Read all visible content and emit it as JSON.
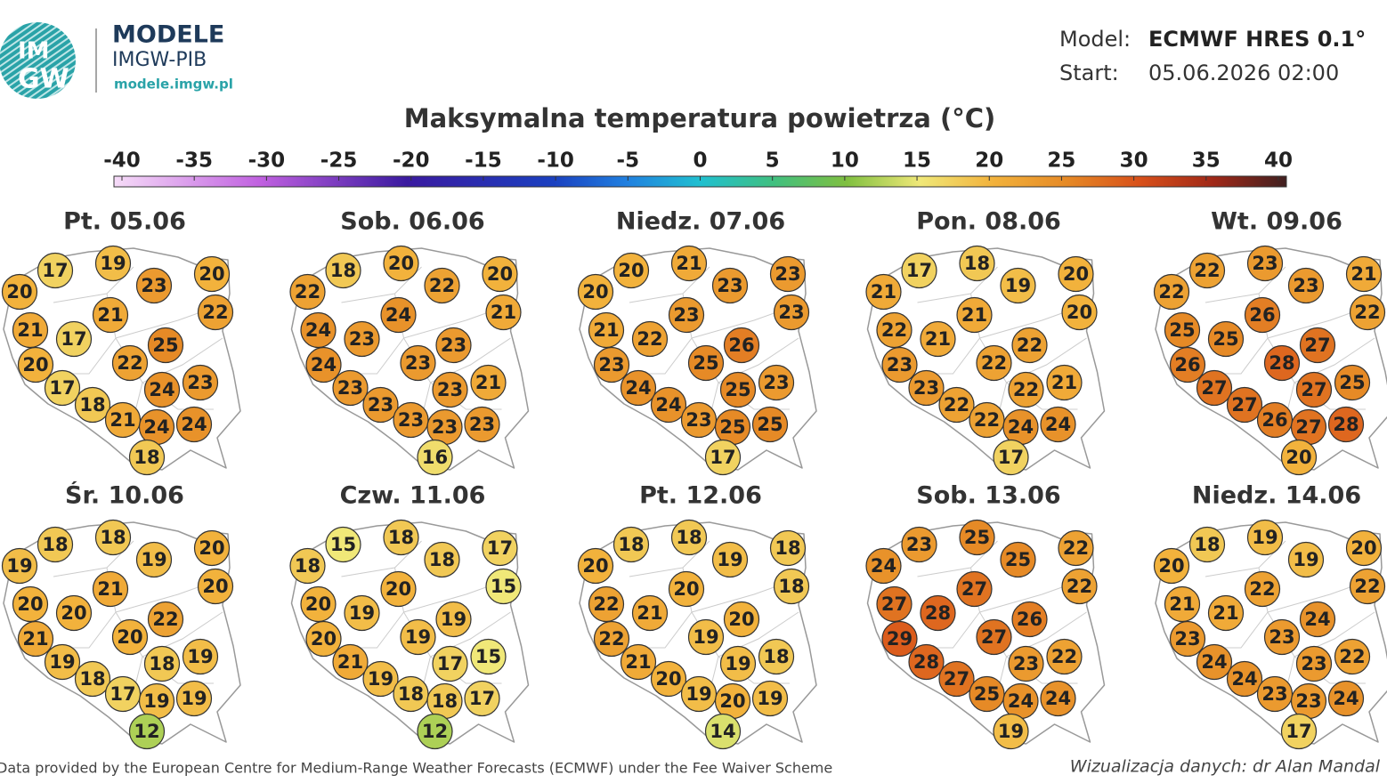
{
  "header": {
    "logo_top": "IM",
    "logo_bottom": "GW",
    "brand": "MODELE",
    "org": "IMGW-PIB",
    "url": "modele.imgw.pl",
    "model_label": "Model:",
    "model_value": "ECMWF HRES 0.1°",
    "start_label": "Start:",
    "start_value": "05.06.2026 02:00"
  },
  "title": "Maksymalna temperatura powietrza (°C)",
  "colorbar": {
    "ticks": [
      -40,
      -35,
      -30,
      -25,
      -20,
      -15,
      -10,
      -5,
      0,
      5,
      10,
      15,
      20,
      25,
      30,
      35,
      40
    ]
  },
  "panels": [
    {
      "title": "Pt. 05.06",
      "values": [
        20,
        17,
        19,
        23,
        20,
        22,
        21,
        17,
        21,
        25,
        20,
        22,
        24,
        23,
        17,
        18,
        21,
        24,
        24,
        18
      ]
    },
    {
      "title": "Sob. 06.06",
      "values": [
        22,
        18,
        20,
        22,
        20,
        21,
        24,
        23,
        24,
        23,
        24,
        23,
        23,
        21,
        23,
        23,
        23,
        23,
        23,
        16
      ]
    },
    {
      "title": "Niedz. 07.06",
      "values": [
        20,
        20,
        21,
        23,
        23,
        23,
        21,
        22,
        23,
        26,
        23,
        25,
        25,
        23,
        24,
        24,
        23,
        25,
        25,
        17
      ]
    },
    {
      "title": "Pon. 08.06",
      "values": [
        21,
        17,
        18,
        19,
        20,
        20,
        22,
        21,
        21,
        22,
        23,
        22,
        22,
        21,
        23,
        22,
        22,
        24,
        24,
        17
      ]
    },
    {
      "title": "Wt. 09.06",
      "values": [
        22,
        22,
        23,
        23,
        21,
        22,
        25,
        25,
        26,
        27,
        26,
        28,
        27,
        25,
        27,
        27,
        26,
        27,
        28,
        20
      ]
    },
    {
      "title": "Śr. 10.06",
      "values": [
        19,
        18,
        18,
        19,
        20,
        20,
        20,
        20,
        21,
        22,
        21,
        20,
        18,
        19,
        19,
        18,
        17,
        19,
        19,
        12
      ]
    },
    {
      "title": "Czw. 11.06",
      "values": [
        18,
        15,
        18,
        18,
        17,
        15,
        20,
        19,
        20,
        19,
        20,
        19,
        17,
        15,
        21,
        19,
        18,
        18,
        17,
        12
      ]
    },
    {
      "title": "Pt. 12.06",
      "values": [
        20,
        18,
        18,
        19,
        18,
        18,
        22,
        21,
        20,
        20,
        22,
        19,
        19,
        18,
        21,
        20,
        19,
        20,
        19,
        14
      ]
    },
    {
      "title": "Sob. 13.06",
      "values": [
        24,
        23,
        25,
        25,
        22,
        22,
        27,
        28,
        27,
        26,
        29,
        27,
        23,
        22,
        28,
        27,
        25,
        24,
        24,
        19
      ]
    },
    {
      "title": "Niedz. 14.06",
      "values": [
        20,
        18,
        19,
        19,
        20,
        22,
        21,
        21,
        22,
        24,
        23,
        23,
        23,
        22,
        24,
        24,
        23,
        23,
        24,
        17
      ]
    }
  ],
  "footer": {
    "left": "Data provided by the European Centre for Medium-Range Weather Forecasts (ECMWF) under the Fee Waiver Scheme",
    "right": "Wizualizacja danych: dr Alan Mandal"
  }
}
